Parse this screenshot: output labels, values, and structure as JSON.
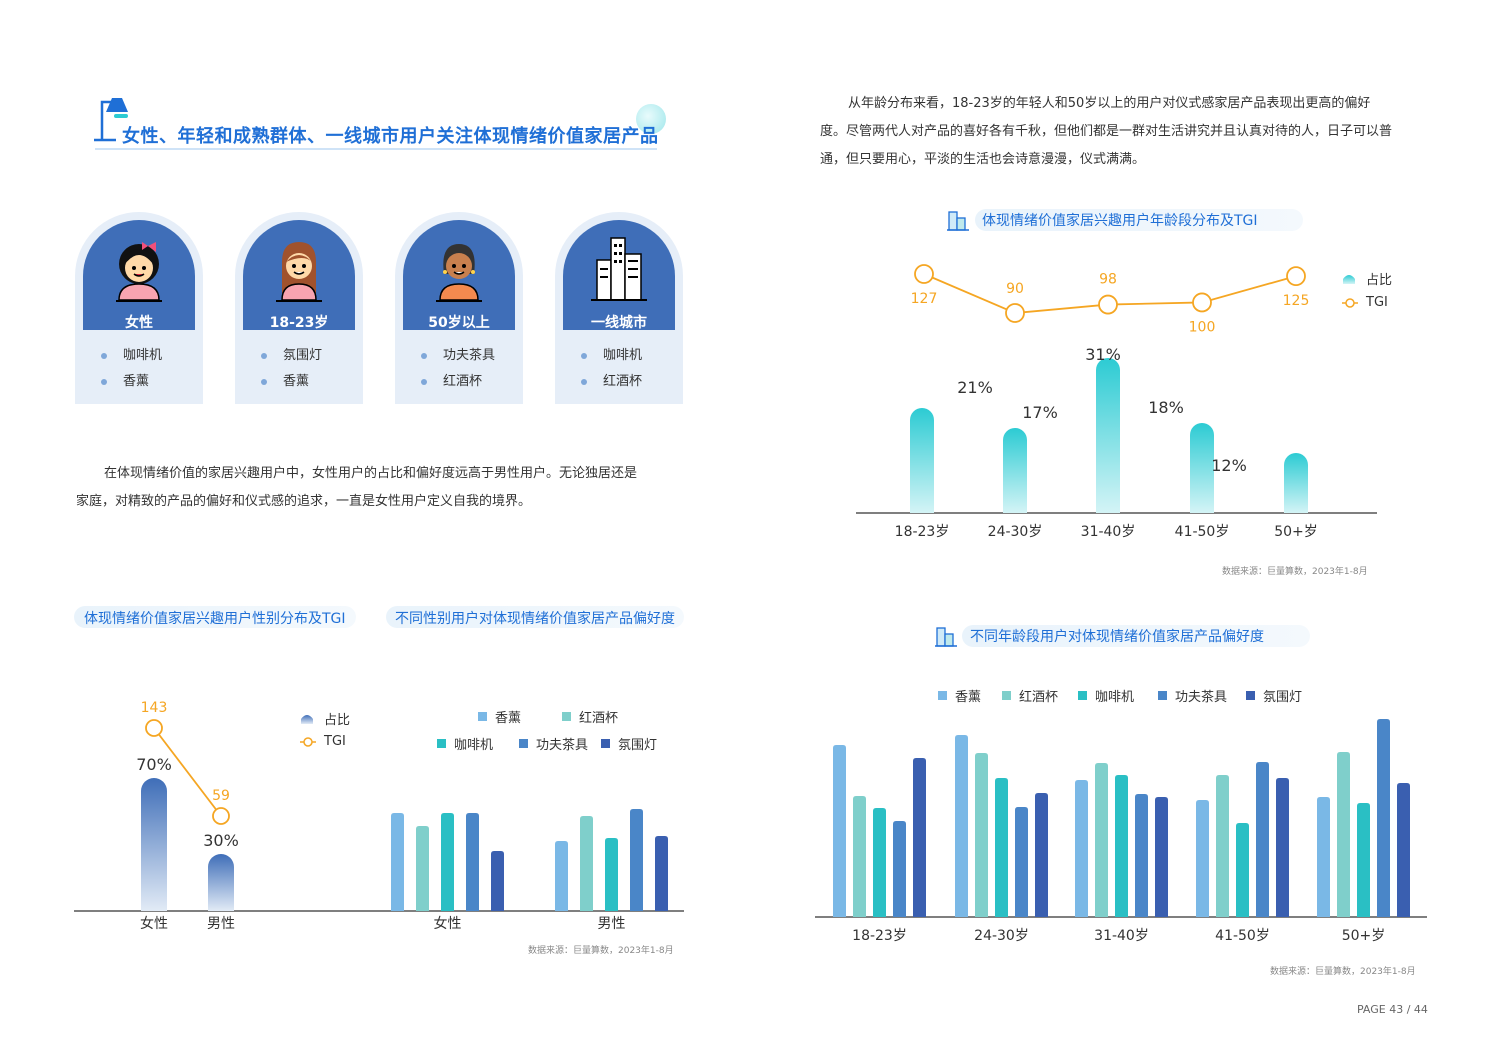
{
  "section_title": "女性、年轻和成熟群体、一线城市用户关注体现情绪价值家居产品",
  "personas": [
    {
      "label": "女性",
      "items": [
        "咖啡机",
        "香薰"
      ]
    },
    {
      "label": "18-23岁",
      "items": [
        "氛围灯",
        "香薰"
      ]
    },
    {
      "label": "50岁以上",
      "items": [
        "功夫茶具",
        "红酒杯"
      ]
    },
    {
      "label": "一线城市",
      "items": [
        "咖啡机",
        "红酒杯"
      ]
    }
  ],
  "left_paragraph": [
    "在体现情绪价值的家居兴趣用户中，女性用户的占比和偏好度远高于男性用户。无论独居还是",
    "家庭，对精致的产品的偏好和仪式感的追求，一直是女性用户定义自我的境界。"
  ],
  "right_paragraph": [
    "从年龄分布来看，18-23岁的年轻人和50岁以上的用户对仪式感家居产品表现出更高的偏好",
    "度。尽管两代人对产品的喜好各有千秋，但他们都是一群对生活讲究并且认真对待的人，日子可以普",
    "通，但只要用心，平淡的生活也会诗意漫漫，仪式满满。"
  ],
  "source_text": "数据来源：巨量算数，2023年1-8月",
  "page_label": "PAGE 43 / 44",
  "colors": {
    "primary": "#1f6fd6",
    "card": "#3f6eb8",
    "tgi": "#f5a623",
    "teal": "#2ccbd3",
    "aroma": "#7ab8e6",
    "wine": "#7fcfcb",
    "coffee": "#2abfc4",
    "tea": "#4a86c8",
    "lamp": "#3a5fb0"
  },
  "chart_data": [
    {
      "type": "bar",
      "title": "体现情绪价值家居兴趣用户年龄段分布及TGI",
      "categories": [
        "18-23岁",
        "24-30岁",
        "31-40岁",
        "41-50岁",
        "50+岁"
      ],
      "series": [
        {
          "name": "占比",
          "values": [
            21,
            17,
            31,
            18,
            12
          ],
          "labels": [
            "21%",
            "17%",
            "31%",
            "18%",
            "12%"
          ]
        },
        {
          "name": "TGI",
          "type": "line",
          "values": [
            127,
            90,
            98,
            100,
            125
          ]
        }
      ],
      "legend": "top-right"
    },
    {
      "type": "bar",
      "title": "体现情绪价值家居兴趣用户性别分布及TGI",
      "categories": [
        "女性",
        "男性"
      ],
      "series": [
        {
          "name": "占比",
          "values": [
            70,
            30
          ],
          "labels": [
            "70%",
            "30%"
          ]
        },
        {
          "name": "TGI",
          "type": "line",
          "values": [
            143,
            59
          ]
        }
      ],
      "legend": "right"
    },
    {
      "type": "bar",
      "title": "不同性别用户对体现情绪价值家居产品偏好度",
      "categories": [
        "女性",
        "男性"
      ],
      "series": [
        {
          "name": "香薰",
          "values": [
            98,
            70
          ]
        },
        {
          "name": "红酒杯",
          "values": [
            85,
            95
          ]
        },
        {
          "name": "咖啡机",
          "values": [
            98,
            73
          ]
        },
        {
          "name": "功夫茶具",
          "values": [
            98,
            102
          ]
        },
        {
          "name": "氛围灯",
          "values": [
            60,
            75
          ]
        }
      ],
      "legend": "top"
    },
    {
      "type": "bar",
      "title": "不同年龄段用户对体现情绪价值家居产品偏好度",
      "categories": [
        "18-23岁",
        "24-30岁",
        "31-40岁",
        "41-50岁",
        "50+岁"
      ],
      "series": [
        {
          "name": "香薰",
          "values": [
            172,
            182,
            137,
            117,
            120
          ]
        },
        {
          "name": "红酒杯",
          "values": [
            121,
            164,
            154,
            142,
            165
          ]
        },
        {
          "name": "咖啡机",
          "values": [
            109,
            139,
            142,
            94,
            114
          ]
        },
        {
          "name": "功夫茶具",
          "values": [
            96,
            110,
            123,
            155,
            198
          ]
        },
        {
          "name": "氛围灯",
          "values": [
            159,
            124,
            120,
            139,
            134
          ]
        }
      ],
      "legend": "top"
    }
  ]
}
